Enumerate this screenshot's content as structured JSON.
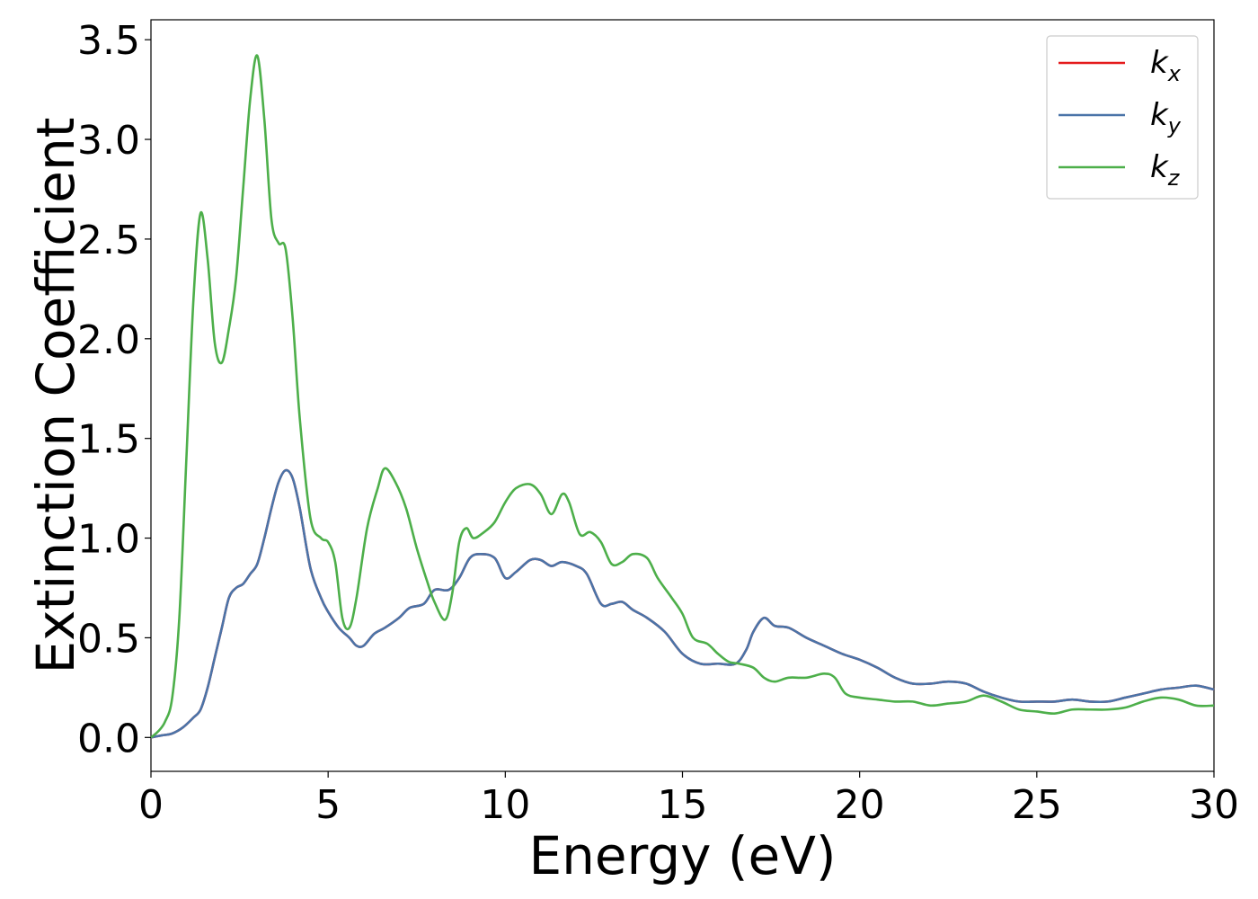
{
  "chart_data": {
    "type": "line",
    "title": "",
    "xlabel": "Energy (eV)",
    "ylabel": "Extinction Coefficient",
    "xlim": [
      0,
      30
    ],
    "ylim": [
      -0.17,
      3.6
    ],
    "xticks": [
      0,
      5,
      10,
      15,
      20,
      25,
      30
    ],
    "xtick_labels": [
      "0",
      "5",
      "10",
      "15",
      "20",
      "25",
      "30"
    ],
    "yticks": [
      0.0,
      0.5,
      1.0,
      1.5,
      2.0,
      2.5,
      3.0,
      3.5
    ],
    "ytick_labels": [
      "0.0",
      "0.5",
      "1.0",
      "1.5",
      "2.0",
      "2.5",
      "3.0",
      "3.5"
    ],
    "grid": false,
    "legend_position": "top-right",
    "series": [
      {
        "name": "k",
        "subscript": "x",
        "color": "#e41a1c",
        "points": [
          [
            0,
            0
          ],
          [
            0.3,
            0.01
          ],
          [
            0.6,
            0.02
          ],
          [
            0.9,
            0.05
          ],
          [
            1.2,
            0.1
          ],
          [
            1.4,
            0.14
          ],
          [
            1.6,
            0.25
          ],
          [
            1.8,
            0.4
          ],
          [
            2.0,
            0.55
          ],
          [
            2.2,
            0.7
          ],
          [
            2.4,
            0.75
          ],
          [
            2.6,
            0.77
          ],
          [
            2.8,
            0.82
          ],
          [
            3.0,
            0.87
          ],
          [
            3.2,
            1.0
          ],
          [
            3.4,
            1.15
          ],
          [
            3.6,
            1.28
          ],
          [
            3.8,
            1.34
          ],
          [
            4.0,
            1.3
          ],
          [
            4.2,
            1.15
          ],
          [
            4.5,
            0.85
          ],
          [
            4.8,
            0.7
          ],
          [
            5.0,
            0.63
          ],
          [
            5.3,
            0.55
          ],
          [
            5.6,
            0.5
          ],
          [
            5.8,
            0.46
          ],
          [
            6.0,
            0.46
          ],
          [
            6.3,
            0.52
          ],
          [
            6.6,
            0.55
          ],
          [
            7.0,
            0.6
          ],
          [
            7.3,
            0.65
          ],
          [
            7.7,
            0.67
          ],
          [
            8.0,
            0.74
          ],
          [
            8.4,
            0.74
          ],
          [
            8.7,
            0.8
          ],
          [
            9.0,
            0.9
          ],
          [
            9.3,
            0.92
          ],
          [
            9.7,
            0.9
          ],
          [
            10.0,
            0.8
          ],
          [
            10.3,
            0.83
          ],
          [
            10.7,
            0.89
          ],
          [
            11.0,
            0.89
          ],
          [
            11.3,
            0.86
          ],
          [
            11.6,
            0.88
          ],
          [
            12.0,
            0.86
          ],
          [
            12.3,
            0.82
          ],
          [
            12.7,
            0.67
          ],
          [
            13.0,
            0.67
          ],
          [
            13.3,
            0.68
          ],
          [
            13.6,
            0.64
          ],
          [
            14.0,
            0.6
          ],
          [
            14.5,
            0.53
          ],
          [
            15.0,
            0.42
          ],
          [
            15.5,
            0.37
          ],
          [
            16.0,
            0.37
          ],
          [
            16.5,
            0.37
          ],
          [
            16.8,
            0.44
          ],
          [
            17.0,
            0.53
          ],
          [
            17.3,
            0.6
          ],
          [
            17.6,
            0.56
          ],
          [
            18.0,
            0.55
          ],
          [
            18.5,
            0.5
          ],
          [
            19.0,
            0.46
          ],
          [
            19.5,
            0.42
          ],
          [
            20.0,
            0.39
          ],
          [
            20.5,
            0.35
          ],
          [
            21.0,
            0.3
          ],
          [
            21.5,
            0.27
          ],
          [
            22.0,
            0.27
          ],
          [
            22.5,
            0.28
          ],
          [
            23.0,
            0.27
          ],
          [
            23.5,
            0.23
          ],
          [
            24.0,
            0.2
          ],
          [
            24.5,
            0.18
          ],
          [
            25.0,
            0.18
          ],
          [
            25.5,
            0.18
          ],
          [
            26.0,
            0.19
          ],
          [
            26.5,
            0.18
          ],
          [
            27.0,
            0.18
          ],
          [
            27.5,
            0.2
          ],
          [
            28.0,
            0.22
          ],
          [
            28.5,
            0.24
          ],
          [
            29.0,
            0.25
          ],
          [
            29.5,
            0.26
          ],
          [
            30.0,
            0.24
          ]
        ]
      },
      {
        "name": "k",
        "subscript": "y",
        "color": "#4a74a8",
        "points": [
          [
            0,
            0
          ],
          [
            0.3,
            0.01
          ],
          [
            0.6,
            0.02
          ],
          [
            0.9,
            0.05
          ],
          [
            1.2,
            0.1
          ],
          [
            1.4,
            0.14
          ],
          [
            1.6,
            0.25
          ],
          [
            1.8,
            0.4
          ],
          [
            2.0,
            0.55
          ],
          [
            2.2,
            0.7
          ],
          [
            2.4,
            0.75
          ],
          [
            2.6,
            0.77
          ],
          [
            2.8,
            0.82
          ],
          [
            3.0,
            0.87
          ],
          [
            3.2,
            1.0
          ],
          [
            3.4,
            1.15
          ],
          [
            3.6,
            1.28
          ],
          [
            3.8,
            1.34
          ],
          [
            4.0,
            1.3
          ],
          [
            4.2,
            1.15
          ],
          [
            4.5,
            0.85
          ],
          [
            4.8,
            0.7
          ],
          [
            5.0,
            0.63
          ],
          [
            5.3,
            0.55
          ],
          [
            5.6,
            0.5
          ],
          [
            5.8,
            0.46
          ],
          [
            6.0,
            0.46
          ],
          [
            6.3,
            0.52
          ],
          [
            6.6,
            0.55
          ],
          [
            7.0,
            0.6
          ],
          [
            7.3,
            0.65
          ],
          [
            7.7,
            0.67
          ],
          [
            8.0,
            0.74
          ],
          [
            8.4,
            0.74
          ],
          [
            8.7,
            0.8
          ],
          [
            9.0,
            0.9
          ],
          [
            9.3,
            0.92
          ],
          [
            9.7,
            0.9
          ],
          [
            10.0,
            0.8
          ],
          [
            10.3,
            0.83
          ],
          [
            10.7,
            0.89
          ],
          [
            11.0,
            0.89
          ],
          [
            11.3,
            0.86
          ],
          [
            11.6,
            0.88
          ],
          [
            12.0,
            0.86
          ],
          [
            12.3,
            0.82
          ],
          [
            12.7,
            0.67
          ],
          [
            13.0,
            0.67
          ],
          [
            13.3,
            0.68
          ],
          [
            13.6,
            0.64
          ],
          [
            14.0,
            0.6
          ],
          [
            14.5,
            0.53
          ],
          [
            15.0,
            0.42
          ],
          [
            15.5,
            0.37
          ],
          [
            16.0,
            0.37
          ],
          [
            16.5,
            0.37
          ],
          [
            16.8,
            0.44
          ],
          [
            17.0,
            0.53
          ],
          [
            17.3,
            0.6
          ],
          [
            17.6,
            0.56
          ],
          [
            18.0,
            0.55
          ],
          [
            18.5,
            0.5
          ],
          [
            19.0,
            0.46
          ],
          [
            19.5,
            0.42
          ],
          [
            20.0,
            0.39
          ],
          [
            20.5,
            0.35
          ],
          [
            21.0,
            0.3
          ],
          [
            21.5,
            0.27
          ],
          [
            22.0,
            0.27
          ],
          [
            22.5,
            0.28
          ],
          [
            23.0,
            0.27
          ],
          [
            23.5,
            0.23
          ],
          [
            24.0,
            0.2
          ],
          [
            24.5,
            0.18
          ],
          [
            25.0,
            0.18
          ],
          [
            25.5,
            0.18
          ],
          [
            26.0,
            0.19
          ],
          [
            26.5,
            0.18
          ],
          [
            27.0,
            0.18
          ],
          [
            27.5,
            0.2
          ],
          [
            28.0,
            0.22
          ],
          [
            28.5,
            0.24
          ],
          [
            29.0,
            0.25
          ],
          [
            29.5,
            0.26
          ],
          [
            30.0,
            0.24
          ]
        ]
      },
      {
        "name": "k",
        "subscript": "z",
        "color": "#4daf4a",
        "points": [
          [
            0,
            0
          ],
          [
            0.2,
            0.03
          ],
          [
            0.4,
            0.08
          ],
          [
            0.6,
            0.2
          ],
          [
            0.8,
            0.6
          ],
          [
            1.0,
            1.4
          ],
          [
            1.2,
            2.2
          ],
          [
            1.4,
            2.63
          ],
          [
            1.6,
            2.4
          ],
          [
            1.8,
            1.98
          ],
          [
            2.0,
            1.88
          ],
          [
            2.2,
            2.05
          ],
          [
            2.4,
            2.3
          ],
          [
            2.6,
            2.75
          ],
          [
            2.8,
            3.2
          ],
          [
            3.0,
            3.42
          ],
          [
            3.2,
            3.1
          ],
          [
            3.4,
            2.6
          ],
          [
            3.6,
            2.48
          ],
          [
            3.8,
            2.45
          ],
          [
            4.0,
            2.1
          ],
          [
            4.2,
            1.6
          ],
          [
            4.5,
            1.1
          ],
          [
            4.8,
            1.0
          ],
          [
            5.0,
            0.98
          ],
          [
            5.2,
            0.88
          ],
          [
            5.4,
            0.6
          ],
          [
            5.6,
            0.55
          ],
          [
            5.8,
            0.7
          ],
          [
            6.1,
            1.05
          ],
          [
            6.4,
            1.25
          ],
          [
            6.6,
            1.35
          ],
          [
            6.9,
            1.28
          ],
          [
            7.2,
            1.15
          ],
          [
            7.5,
            0.95
          ],
          [
            7.8,
            0.78
          ],
          [
            8.0,
            0.68
          ],
          [
            8.3,
            0.59
          ],
          [
            8.5,
            0.72
          ],
          [
            8.7,
            0.98
          ],
          [
            8.9,
            1.05
          ],
          [
            9.1,
            1.0
          ],
          [
            9.4,
            1.03
          ],
          [
            9.7,
            1.08
          ],
          [
            10.0,
            1.18
          ],
          [
            10.3,
            1.25
          ],
          [
            10.7,
            1.27
          ],
          [
            11.0,
            1.22
          ],
          [
            11.3,
            1.12
          ],
          [
            11.6,
            1.22
          ],
          [
            11.8,
            1.18
          ],
          [
            12.1,
            1.02
          ],
          [
            12.4,
            1.03
          ],
          [
            12.7,
            0.98
          ],
          [
            13.0,
            0.87
          ],
          [
            13.3,
            0.88
          ],
          [
            13.6,
            0.92
          ],
          [
            14.0,
            0.9
          ],
          [
            14.3,
            0.8
          ],
          [
            14.7,
            0.7
          ],
          [
            15.0,
            0.62
          ],
          [
            15.3,
            0.5
          ],
          [
            15.7,
            0.47
          ],
          [
            16.0,
            0.42
          ],
          [
            16.3,
            0.38
          ],
          [
            16.6,
            0.37
          ],
          [
            17.0,
            0.35
          ],
          [
            17.3,
            0.3
          ],
          [
            17.6,
            0.28
          ],
          [
            18.0,
            0.3
          ],
          [
            18.5,
            0.3
          ],
          [
            19.0,
            0.32
          ],
          [
            19.3,
            0.3
          ],
          [
            19.6,
            0.22
          ],
          [
            20.0,
            0.2
          ],
          [
            20.5,
            0.19
          ],
          [
            21.0,
            0.18
          ],
          [
            21.5,
            0.18
          ],
          [
            22.0,
            0.16
          ],
          [
            22.5,
            0.17
          ],
          [
            23.0,
            0.18
          ],
          [
            23.5,
            0.21
          ],
          [
            24.0,
            0.18
          ],
          [
            24.5,
            0.14
          ],
          [
            25.0,
            0.13
          ],
          [
            25.5,
            0.12
          ],
          [
            26.0,
            0.14
          ],
          [
            26.5,
            0.14
          ],
          [
            27.0,
            0.14
          ],
          [
            27.5,
            0.15
          ],
          [
            28.0,
            0.18
          ],
          [
            28.5,
            0.2
          ],
          [
            29.0,
            0.19
          ],
          [
            29.5,
            0.16
          ],
          [
            30.0,
            0.16
          ]
        ]
      }
    ]
  }
}
